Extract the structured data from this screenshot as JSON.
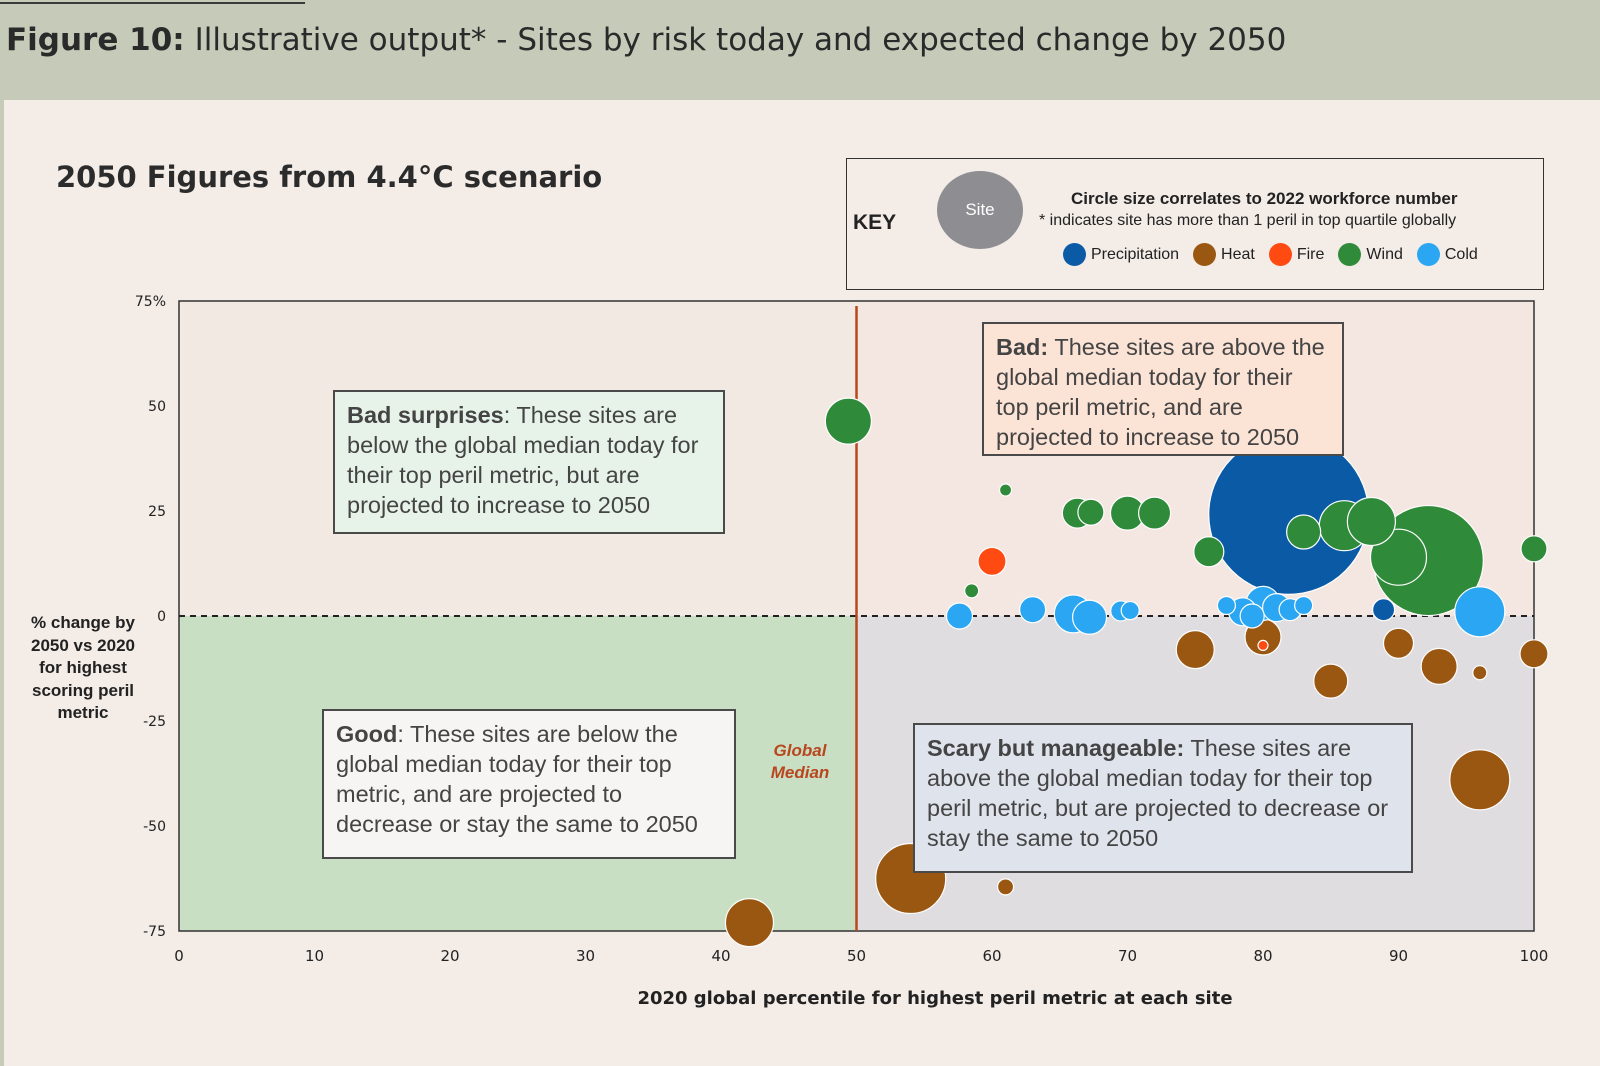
{
  "header": {
    "figure_label": "Figure 10:",
    "figure_title": " Illustrative output* - Sites by risk today and expected change by 2050"
  },
  "scenario_title": "2050 Figures from 4.4°C scenario",
  "key": {
    "label": "KEY",
    "site_label": "Site",
    "size_note": "Circle size correlates to 2022 workforce number",
    "star_note": "* indicates site has more than 1 peril in top quartile globally",
    "site_color": "#8e8e92",
    "legend": [
      {
        "name": "Precipitation",
        "color": "#0b5aa6"
      },
      {
        "name": "Heat",
        "color": "#9a5712"
      },
      {
        "name": "Fire",
        "color": "#ff4a12"
      },
      {
        "name": "Wind",
        "color": "#2f8a3a"
      },
      {
        "name": "Cold",
        "color": "#2aa6f2"
      }
    ]
  },
  "quadrants": {
    "bad_surprises": {
      "title": "Bad surprises",
      "text": ": These sites are below the global median today for their top peril metric, but are projected to increase to 2050",
      "color": "#e7f3e8"
    },
    "bad": {
      "title": "Bad:",
      "text": " These sites are above the global median today for their top peril metric, and are projected to increase to 2050",
      "color": "#fbe3d6"
    },
    "good": {
      "title": "Good",
      "text": ": These sites are below the global median today for their top metric, and are projected to decrease or stay the same to 2050",
      "color": "#f7f5f4"
    },
    "scary": {
      "title": "Scary but manageable:",
      "text": " These sites are above the global median today for their top peril metric, but are projected to decrease or stay the same to 2050",
      "color": "#dfe4ec"
    }
  },
  "global_median_label": "Global Median",
  "chart_data": {
    "type": "scatter",
    "subtype": "bubble",
    "xlabel": "2020 global percentile for highest peril metric at each site",
    "ylabel": "% change by 2050 vs 2020 for highest scoring peril metric",
    "xlim": [
      0,
      100
    ],
    "ylim": [
      -75,
      75
    ],
    "x_ticks": [
      "0",
      "10",
      "20",
      "30",
      "40",
      "50",
      "60",
      "70",
      "80",
      "90",
      "100"
    ],
    "y_ticks": [
      "75%",
      "50",
      "25",
      "0",
      "-25",
      "-50",
      "-75"
    ],
    "median_x": 50,
    "colors": {
      "Precipitation": "#0b5aa6",
      "Heat": "#9a5712",
      "Fire": "#ff4a12",
      "Wind": "#2f8a3a",
      "Cold": "#2aa6f2"
    },
    "points": [
      {
        "peril": "Precipitation",
        "x": 81.9,
        "y": 24.2,
        "size": 80
      },
      {
        "peril": "Precipitation",
        "x": 88.9,
        "y": 1.5,
        "size": 11
      },
      {
        "peril": "Wind",
        "x": 49.4,
        "y": 46.4,
        "size": 23
      },
      {
        "peril": "Wind",
        "x": 61.0,
        "y": 30.0,
        "size": 6
      },
      {
        "peril": "Wind",
        "x": 66.3,
        "y": 24.5,
        "size": 15
      },
      {
        "peril": "Wind",
        "x": 67.3,
        "y": 24.7,
        "size": 13
      },
      {
        "peril": "Wind",
        "x": 70.0,
        "y": 24.5,
        "size": 17
      },
      {
        "peril": "Wind",
        "x": 72.0,
        "y": 24.5,
        "size": 16
      },
      {
        "peril": "Wind",
        "x": 76.0,
        "y": 15.3,
        "size": 15
      },
      {
        "peril": "Wind",
        "x": 58.5,
        "y": 6.0,
        "size": 7
      },
      {
        "peril": "Wind",
        "x": 83.0,
        "y": 20.0,
        "size": 17
      },
      {
        "peril": "Wind",
        "x": 86.0,
        "y": 21.5,
        "size": 25
      },
      {
        "peril": "Wind",
        "x": 88.0,
        "y": 22.5,
        "size": 24
      },
      {
        "peril": "Wind",
        "x": 92.2,
        "y": 13.2,
        "size": 55
      },
      {
        "peril": "Wind",
        "x": 90.0,
        "y": 14.0,
        "size": 28
      },
      {
        "peril": "Wind",
        "x": 100.0,
        "y": 16.0,
        "size": 13
      },
      {
        "peril": "Fire",
        "x": 60.0,
        "y": 13.0,
        "size": 14
      },
      {
        "peril": "Fire",
        "x": 80.0,
        "y": -7.0,
        "size": 5
      },
      {
        "peril": "Cold",
        "x": 57.6,
        "y": 0.0,
        "size": 13
      },
      {
        "peril": "Cold",
        "x": 63.0,
        "y": 1.5,
        "size": 13
      },
      {
        "peril": "Cold",
        "x": 66.0,
        "y": 0.5,
        "size": 19
      },
      {
        "peril": "Cold",
        "x": 67.2,
        "y": -0.3,
        "size": 17
      },
      {
        "peril": "Cold",
        "x": 69.5,
        "y": 1.2,
        "size": 10
      },
      {
        "peril": "Cold",
        "x": 70.2,
        "y": 1.3,
        "size": 9
      },
      {
        "peril": "Cold",
        "x": 77.3,
        "y": 2.5,
        "size": 9
      },
      {
        "peril": "Cold",
        "x": 78.5,
        "y": 1.0,
        "size": 14
      },
      {
        "peril": "Cold",
        "x": 79.2,
        "y": 0.0,
        "size": 12
      },
      {
        "peril": "Cold",
        "x": 80.0,
        "y": 3.0,
        "size": 17
      },
      {
        "peril": "Cold",
        "x": 81.0,
        "y": 2.0,
        "size": 14
      },
      {
        "peril": "Cold",
        "x": 82.0,
        "y": 1.5,
        "size": 11
      },
      {
        "peril": "Cold",
        "x": 83.0,
        "y": 2.5,
        "size": 9
      },
      {
        "peril": "Cold",
        "x": 96.0,
        "y": 1.0,
        "size": 25
      },
      {
        "peril": "Heat",
        "x": 42.1,
        "y": -73.0,
        "size": 24
      },
      {
        "peril": "Heat",
        "x": 54.0,
        "y": -62.5,
        "size": 35
      },
      {
        "peril": "Heat",
        "x": 61.0,
        "y": -64.5,
        "size": 8
      },
      {
        "peril": "Heat",
        "x": 75.0,
        "y": -8.0,
        "size": 19
      },
      {
        "peril": "Heat",
        "x": 80.0,
        "y": -5.0,
        "size": 18
      },
      {
        "peril": "Heat",
        "x": 85.0,
        "y": -15.5,
        "size": 17
      },
      {
        "peril": "Heat",
        "x": 90.0,
        "y": -6.5,
        "size": 15
      },
      {
        "peril": "Heat",
        "x": 93.0,
        "y": -12.0,
        "size": 18
      },
      {
        "peril": "Heat",
        "x": 96.0,
        "y": -13.5,
        "size": 7
      },
      {
        "peril": "Heat",
        "x": 96.0,
        "y": -39.0,
        "size": 30
      },
      {
        "peril": "Heat",
        "x": 100.0,
        "y": -9.0,
        "size": 14
      }
    ]
  }
}
